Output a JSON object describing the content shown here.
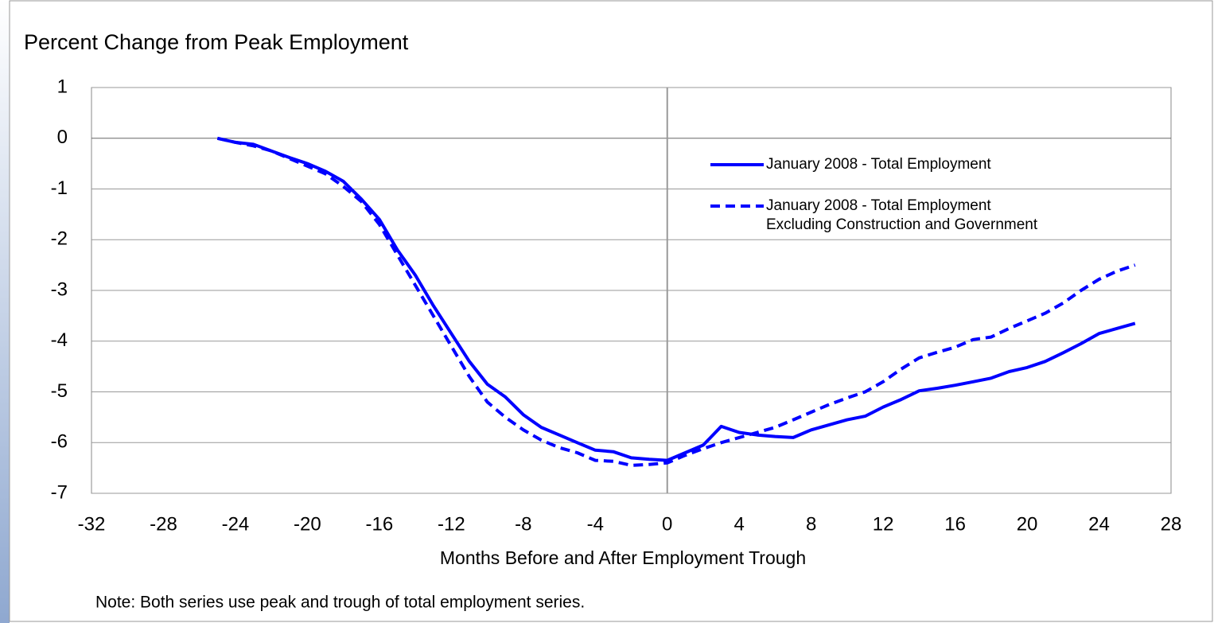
{
  "chart_data": {
    "type": "line",
    "title": "Percent Change from Peak Employment",
    "xlabel": "Months Before and After Employment Trough",
    "note": "Note:  Both series use peak and trough of total employment series.",
    "x": [
      -25,
      -24,
      -23,
      -22,
      -21,
      -20,
      -19,
      -18,
      -17,
      -16,
      -15,
      -14,
      -13,
      -12,
      -11,
      -10,
      -9,
      -8,
      -7,
      -6,
      -5,
      -4,
      -3,
      -2,
      -1,
      0,
      1,
      2,
      3,
      4,
      5,
      6,
      7,
      8,
      9,
      10,
      11,
      12,
      13,
      14,
      15,
      16,
      17,
      18,
      19,
      20,
      21,
      22,
      23,
      24,
      25,
      26
    ],
    "series": [
      {
        "name": "January 2008 - Total Employment",
        "color": "#0000ff",
        "dash": "solid",
        "values": [
          0,
          -0.08,
          -0.12,
          -0.25,
          -0.38,
          -0.5,
          -0.65,
          -0.85,
          -1.2,
          -1.6,
          -2.2,
          -2.7,
          -3.3,
          -3.85,
          -4.4,
          -4.85,
          -5.1,
          -5.45,
          -5.7,
          -5.85,
          -6.0,
          -6.15,
          -6.18,
          -6.3,
          -6.33,
          -6.35,
          -6.2,
          -6.05,
          -5.68,
          -5.8,
          -5.85,
          -5.88,
          -5.9,
          -5.75,
          -5.65,
          -5.55,
          -5.48,
          -5.3,
          -5.15,
          -4.98,
          -4.93,
          -4.87,
          -4.8,
          -4.73,
          -4.6,
          -4.52,
          -4.4,
          -4.23,
          -4.05,
          -3.85,
          -3.75,
          -3.65
        ]
      },
      {
        "name": "January 2008 - Total Employment Excluding Construction and Government",
        "color": "#0000ff",
        "dash": "dashed",
        "values": [
          0,
          -0.08,
          -0.15,
          -0.25,
          -0.4,
          -0.55,
          -0.7,
          -0.95,
          -1.25,
          -1.7,
          -2.3,
          -2.9,
          -3.5,
          -4.1,
          -4.7,
          -5.2,
          -5.5,
          -5.75,
          -5.95,
          -6.1,
          -6.2,
          -6.35,
          -6.37,
          -6.45,
          -6.43,
          -6.4,
          -6.25,
          -6.12,
          -6.0,
          -5.9,
          -5.8,
          -5.7,
          -5.55,
          -5.4,
          -5.25,
          -5.12,
          -5.0,
          -4.8,
          -4.55,
          -4.33,
          -4.22,
          -4.12,
          -3.97,
          -3.92,
          -3.75,
          -3.6,
          -3.45,
          -3.25,
          -3.0,
          -2.78,
          -2.62,
          -2.5
        ]
      }
    ],
    "xlim": [
      -32,
      28
    ],
    "xticks": [
      -32,
      -28,
      -24,
      -20,
      -16,
      -12,
      -8,
      -4,
      0,
      4,
      8,
      12,
      16,
      20,
      24,
      28
    ],
    "ylim": [
      -7,
      1
    ],
    "yticks": [
      -7,
      -6,
      -5,
      -4,
      -3,
      -2,
      -1,
      0,
      1
    ],
    "grid": true
  }
}
